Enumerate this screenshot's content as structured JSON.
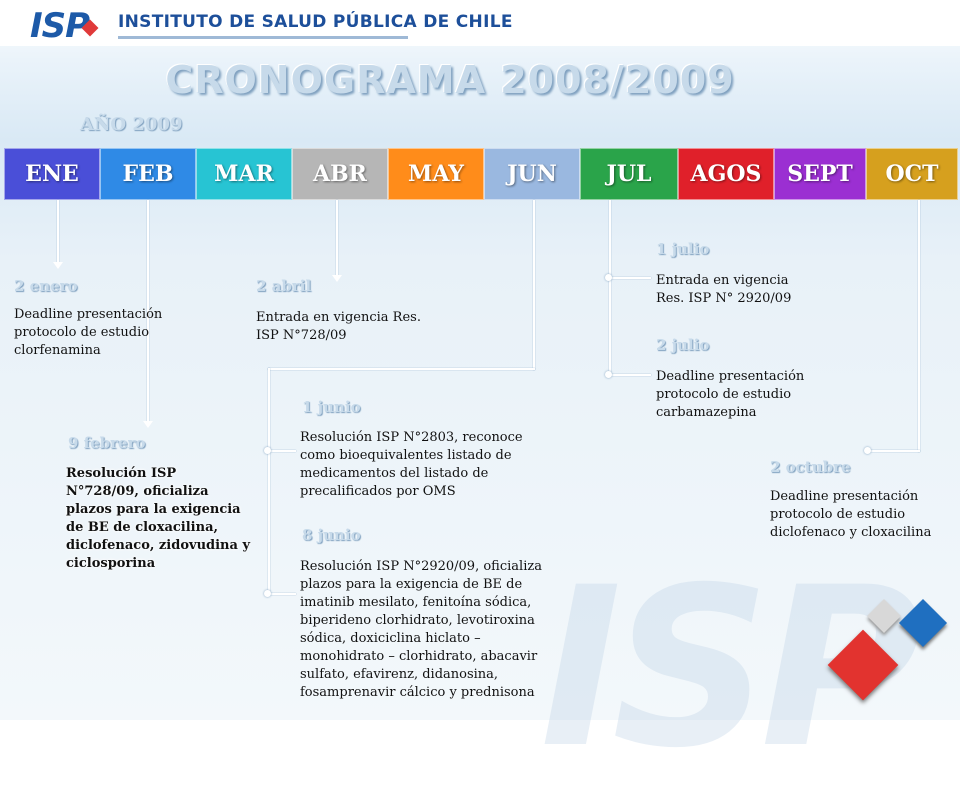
{
  "header": {
    "logo_text": "ISP",
    "institute": "INSTITUTO DE SALUD PÚBLICA DE CHILE"
  },
  "title": "CRONOGRAMA  2008/2009",
  "year_label": "AÑO 2009",
  "months": [
    {
      "label": "ENE",
      "color": "#4a4fd8"
    },
    {
      "label": "FEB",
      "color": "#2f8ae6"
    },
    {
      "label": "MAR",
      "color": "#27c4d3"
    },
    {
      "label": "ABR",
      "color": "#b6b6b6"
    },
    {
      "label": "MAY",
      "color": "#ff8c1a"
    },
    {
      "label": "JUN",
      "color": "#9ab8e0"
    },
    {
      "label": "JUL",
      "color": "#2aa44a"
    },
    {
      "label": "AGOS",
      "color": "#e0202a"
    },
    {
      "label": "SEPT",
      "color": "#9b2fd2"
    },
    {
      "label": "OCT",
      "color": "#d6a01e"
    }
  ],
  "events": {
    "ene": {
      "date": "2 enero",
      "text": "Deadline presentación protocolo de estudio clorfenamina"
    },
    "feb": {
      "date": "9 febrero",
      "text": "Resolución ISP N°728/09, oficializa plazos para la exigencia de BE de cloxacilina, diclofenaco, zidovudina y ciclosporina"
    },
    "abr": {
      "date": "2 abril",
      "text": "Entrada en vigencia Res. ISP N°728/09"
    },
    "jun1": {
      "date": "1 junio",
      "text": "Resolución ISP N°2803, reconoce como bioequivalentes listado de medicamentos del listado de precalificados por OMS"
    },
    "jun8": {
      "date": "8 junio",
      "text": "Resolución ISP N°2920/09, oficializa plazos para la exigencia de BE de imatinib mesilato, fenitoína sódica, biperideno clorhidrato, levotiroxina sódica, doxiciclina hiclato – monohidrato – clorhidrato, abacavir sulfato, efavirenz, didanosina, fosamprenavir cálcico y prednisona"
    },
    "jul1": {
      "date": "1 julio",
      "text": "Entrada en vigencia Res. ISP N° 2920/09"
    },
    "jul2": {
      "date": "2 julio",
      "text": "Deadline presentación protocolo de estudio carbamazepina"
    },
    "oct": {
      "date": "2 octubre",
      "text": "Deadline presentación protocolo de estudio diclofenaco y cloxacilina"
    }
  }
}
